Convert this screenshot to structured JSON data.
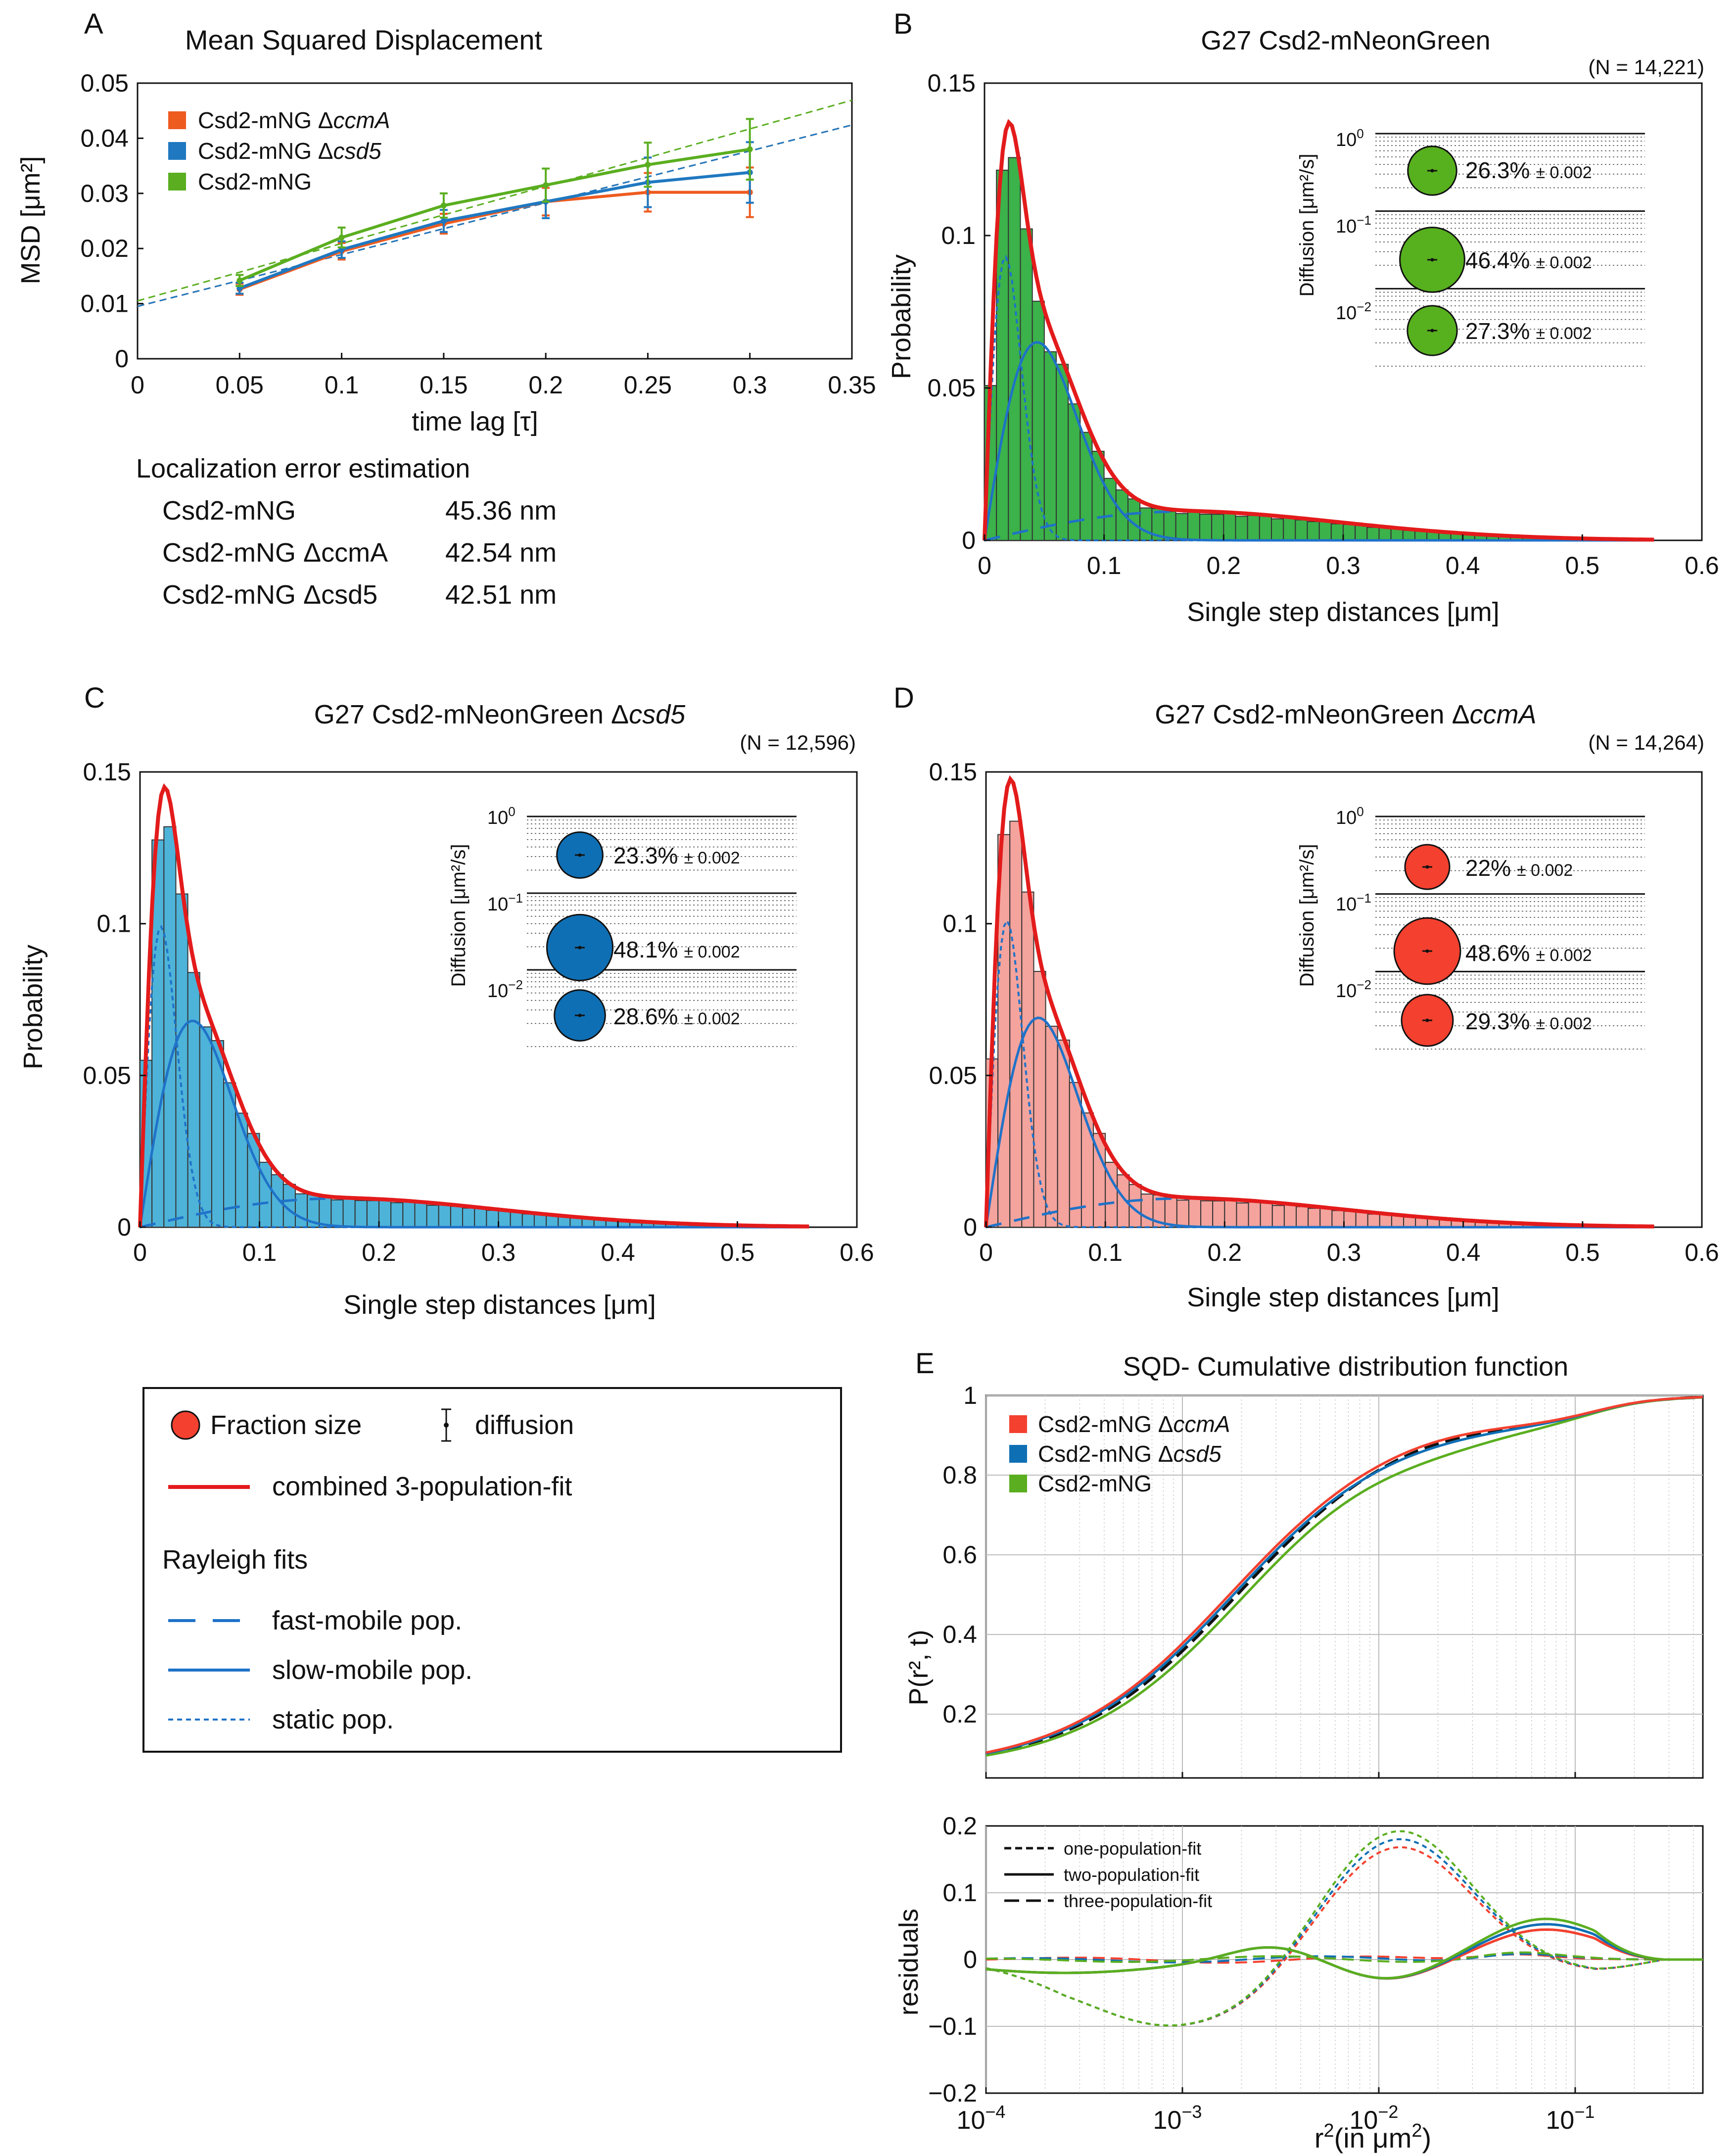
{
  "colors": {
    "orange": "#EE5B1F",
    "blue": "#1F78C0",
    "green": "#5AAE1F",
    "red": "#E31B1B",
    "fit_blue": "#1F72C8",
    "bar_green": "#3BB24A",
    "bar_cyan": "#4EB3D9",
    "bar_pink": "#F4A39D",
    "bubble_green": "#57B01E",
    "bubble_blue": "#0F6FB4",
    "bubble_red": "#F3402F"
  },
  "chart_data": [
    {
      "id": "A",
      "panel_label": "A",
      "type": "line",
      "title": "Mean Squared Displacement",
      "xlabel": "time lag [τ]",
      "ylabel": "MSD [μm²]",
      "xlim": [
        0,
        0.35
      ],
      "ylim": [
        0,
        0.05
      ],
      "xticks": [
        "0",
        "0.05",
        "0.1",
        "0.15",
        "0.2",
        "0.25",
        "0.3",
        "0.35"
      ],
      "yticks": [
        "0",
        "0.01",
        "0.02",
        "0.03",
        "0.04",
        "0.05"
      ],
      "x": [
        0.05,
        0.1,
        0.15,
        0.2,
        0.25,
        0.3
      ],
      "series": [
        {
          "name": "Csd2-mNG ΔccmA",
          "color_key": "orange",
          "values": [
            0.0126,
            0.0195,
            0.0245,
            0.0285,
            0.0302,
            0.0302
          ],
          "err": [
            0.001,
            0.0015,
            0.0018,
            0.0025,
            0.0035,
            0.0045
          ],
          "fit": [
            0.0095,
            0.094
          ]
        },
        {
          "name": "Csd2-mNG Δcsd5",
          "color_key": "blue",
          "values": [
            0.0128,
            0.0198,
            0.025,
            0.0285,
            0.032,
            0.0338
          ],
          "err": [
            0.001,
            0.0015,
            0.002,
            0.003,
            0.0045,
            0.0055
          ],
          "fit": [
            0.0095,
            0.094
          ]
        },
        {
          "name": "Csd2-mNG",
          "color_key": "green",
          "values": [
            0.0142,
            0.022,
            0.0278,
            0.0315,
            0.0352,
            0.038
          ],
          "err": [
            0.001,
            0.0018,
            0.0022,
            0.003,
            0.004,
            0.0055
          ],
          "fit": [
            0.0105,
            0.104
          ]
        }
      ],
      "legend_position": "top-left",
      "localization": {
        "title": "Localization error estimation",
        "rows": [
          {
            "label": "Csd2-mNG",
            "value": "45.36 nm"
          },
          {
            "label": "Csd2-mNG ΔccmA",
            "value": "42.54 nm"
          },
          {
            "label": "Csd2-mNG Δcsd5",
            "value": "42.51 nm"
          }
        ]
      }
    },
    {
      "id": "B",
      "panel_label": "B",
      "type": "bar",
      "title": "G27 Csd2-mNeonGreen",
      "n_label": "(N = 14,221)",
      "xlabel": "Single step distances [μm]",
      "ylabel": "Probability",
      "xlim": [
        0,
        0.6
      ],
      "ylim": [
        0,
        0.15
      ],
      "xticks": [
        "0",
        "0.1",
        "0.2",
        "0.3",
        "0.4",
        "0.5",
        "0.6"
      ],
      "yticks": [
        "0",
        "0.05",
        "0.1",
        "0.15"
      ],
      "bar_color_key": "bar_green",
      "peak": 0.138,
      "static_peak": 0.093,
      "slow_peak": 0.065,
      "hist_scale": 0.93,
      "inset": {
        "ylabel": "Diffusion [μm²/s]",
        "yticks": [
          "10",
          "10",
          "10"
        ],
        "yexps": [
          "0",
          "−1",
          "−2"
        ],
        "bubble_color_key": "bubble_green",
        "fractions": [
          {
            "percent": "26.3%",
            "err": "± 0.002",
            "size": 26.3
          },
          {
            "percent": "46.4%",
            "err": "± 0.002",
            "size": 46.4
          },
          {
            "percent": "27.3%",
            "err": "± 0.002",
            "size": 27.3
          }
        ]
      }
    },
    {
      "id": "C",
      "panel_label": "C",
      "type": "bar",
      "title": "G27 Csd2-mNeonGreen Δcsd5",
      "n_label": "(N = 12,596)",
      "xlabel": "Single step distances [μm]",
      "ylabel": "Probability",
      "xlim": [
        0,
        0.6
      ],
      "ylim": [
        0,
        0.15
      ],
      "xticks": [
        "0",
        "0.1",
        "0.2",
        "0.3",
        "0.4",
        "0.5",
        "0.6"
      ],
      "yticks": [
        "0",
        "0.05",
        "0.1",
        "0.15"
      ],
      "bar_color_key": "bar_cyan",
      "peak": 0.145,
      "static_peak": 0.099,
      "slow_peak": 0.068,
      "hist_scale": 0.95,
      "inset": {
        "ylabel": "Diffusion [μm²/s]",
        "yticks": [
          "10",
          "10",
          "10"
        ],
        "yexps": [
          "0",
          "−1",
          "−2"
        ],
        "bubble_color_key": "bubble_blue",
        "fractions": [
          {
            "percent": "23.3%",
            "err": "± 0.002",
            "size": 23.3
          },
          {
            "percent": "48.1%",
            "err": "± 0.002",
            "size": 48.1
          },
          {
            "percent": "28.6%",
            "err": "± 0.002",
            "size": 28.6
          }
        ]
      }
    },
    {
      "id": "D",
      "panel_label": "D",
      "type": "bar",
      "title": "G27 Csd2-mNeonGreen ΔccmA",
      "n_label": "(N = 14,264)",
      "xlabel": "Single step distances [μm]",
      "ylabel": "Probability",
      "xlim": [
        0,
        0.6
      ],
      "ylim": [
        0,
        0.15
      ],
      "xticks": [
        "0",
        "0.1",
        "0.2",
        "0.3",
        "0.4",
        "0.5",
        "0.6"
      ],
      "yticks": [
        "0",
        "0.05",
        "0.1",
        "0.15"
      ],
      "bar_color_key": "bar_pink",
      "peak": 0.147,
      "static_peak": 0.101,
      "slow_peak": 0.069,
      "hist_scale": 0.94,
      "inset": {
        "ylabel": "Diffusion [μm²/s]",
        "yticks": [
          "10",
          "10",
          "10"
        ],
        "yexps": [
          "0",
          "−1",
          "−2"
        ],
        "bubble_color_key": "bubble_red",
        "fractions": [
          {
            "percent": "22%",
            "err": "± 0.002",
            "size": 22
          },
          {
            "percent": "48.6%",
            "err": "± 0.002",
            "size": 48.6
          },
          {
            "percent": "29.3%",
            "err": "± 0.002",
            "size": 29.3
          }
        ]
      }
    },
    {
      "id": "E",
      "panel_label": "E",
      "type": "line",
      "title": "SQD- Cumulative distribution function",
      "ylabel": "P(r², t)",
      "ylim": [
        0,
        1
      ],
      "yticks": [
        "0.2",
        "0.4",
        "0.6",
        "0.8",
        "1"
      ],
      "xscale": "log",
      "xlim_log10": [
        -4,
        -0.35
      ],
      "series": [
        {
          "name": "Csd2-mNG ΔccmA",
          "color_key": "bubble_red"
        },
        {
          "name": "Csd2-mNG Δcsd5",
          "color_key": "bubble_blue"
        },
        {
          "name": "Csd2-mNG",
          "color_key": "green"
        }
      ],
      "legend_position": "top-left"
    },
    {
      "id": "E_res",
      "type": "line",
      "ylabel": "residuals",
      "xlabel": "r²(in μm²)",
      "xlabel_main": "r",
      "xlabel_sup": "2",
      "xlabel_tail": "(in μm",
      "xlabel_sup2": "2",
      "xlabel_end": ")",
      "ylim": [
        -0.2,
        0.2
      ],
      "yticks": [
        "−0.2",
        "−0.1",
        "0",
        "0.1",
        "0.2"
      ],
      "xticks_base": "10",
      "xticks_exp": [
        "−4",
        "−3",
        "−2",
        "−1"
      ],
      "legend": [
        "one-population-fit",
        "two-population-fit",
        "three-population-fit"
      ]
    }
  ],
  "key": {
    "fraction_label": "Fraction size",
    "diffusion_label": "diffusion",
    "combined_label": "combined 3-population-fit",
    "rayleigh_title": "Rayleigh fits",
    "fast_label": "fast-mobile pop.",
    "slow_label": "slow-mobile pop.",
    "static_label": "static pop."
  }
}
